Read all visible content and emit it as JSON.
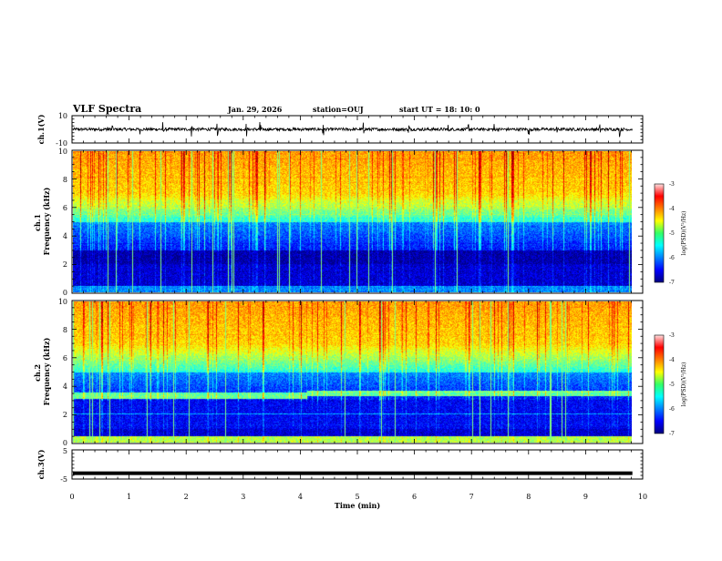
{
  "header": {
    "title": "VLF Spectra",
    "date": "Jan. 29, 2026",
    "station": "station=OUJ",
    "start": "start  UT =   18: 10: 0"
  },
  "chart_data": [
    {
      "type": "line",
      "name": "ch1-waveform",
      "ylabel": "ch.1(V)",
      "ylim": [
        -10,
        10
      ],
      "yticks": [
        "10",
        "-10"
      ],
      "x_range_min": [
        0,
        9.82
      ],
      "baseline": 0,
      "spike_times": [
        0.62,
        0.7,
        1.2,
        1.6,
        2.1,
        2.55,
        3.05,
        3.3,
        4.4,
        5.1,
        5.9,
        6.6,
        6.95,
        7.4,
        8.0,
        8.5,
        9.25,
        9.6
      ]
    },
    {
      "type": "heatmap",
      "name": "ch1-spectrogram",
      "ylabel": "ch.1\nFrequency (kHz)",
      "ylim": [
        0,
        10
      ],
      "yticks": [
        "0",
        "2",
        "4",
        "6",
        "8",
        "10"
      ],
      "x_range_min": [
        0,
        9.82
      ],
      "colorbar": {
        "label": "log(PSD)(V²/Hz)",
        "range": [
          -7,
          -3
        ],
        "ticks": [
          "-3",
          "-4",
          "-5",
          "-6",
          "-7"
        ]
      }
    },
    {
      "type": "heatmap",
      "name": "ch2-spectrogram",
      "ylabel": "ch.2\nFrequency (kHz)",
      "ylim": [
        0,
        10
      ],
      "yticks": [
        "0",
        "2",
        "4",
        "6",
        "8",
        "10"
      ],
      "x_range_min": [
        0,
        9.82
      ],
      "band_shift_min": 4.1,
      "colorbar": {
        "label": "log(PSD)(V²/Hz)",
        "range": [
          -7,
          -3
        ],
        "ticks": [
          "-3",
          "-4",
          "-5",
          "-6",
          "-7"
        ]
      }
    },
    {
      "type": "line",
      "name": "ch3-waveform",
      "ylabel": "ch.3(V)",
      "ylim": [
        -5,
        5
      ],
      "yticks": [
        "5",
        "-5"
      ],
      "x_range_min": [
        0,
        9.82
      ],
      "baseline": -3
    }
  ],
  "x_axis": {
    "label": "Time (min)",
    "xlim": [
      0,
      10
    ],
    "ticks": [
      "0",
      "1",
      "2",
      "3",
      "4",
      "5",
      "6",
      "7",
      "8",
      "9",
      "10"
    ]
  }
}
